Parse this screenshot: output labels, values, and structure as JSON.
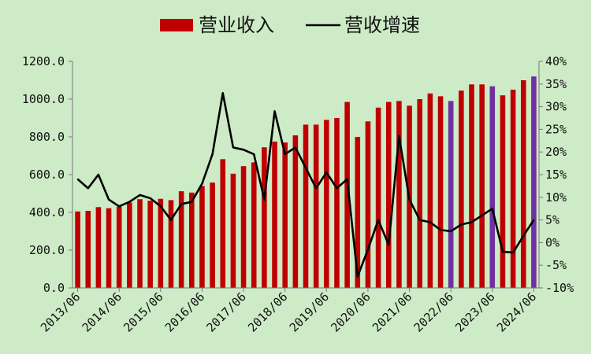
{
  "chart_data": {
    "type": "bar",
    "legend": {
      "position": "top",
      "bar_label": "营业收入",
      "line_label": "营收增速"
    },
    "colors": {
      "bar": "#c00000",
      "bar_highlight": "#7030a0",
      "line": "#000000",
      "background": "#cdebc6"
    },
    "grid": false,
    "y_left": {
      "ylim": [
        0,
        1200
      ],
      "ticks": [
        0,
        200,
        400,
        600,
        800,
        1000,
        1200
      ],
      "tick_labels": [
        "0.0",
        "200.0",
        "400.0",
        "600.0",
        "800.0",
        "1000.0",
        "1200.0"
      ]
    },
    "y_right": {
      "ylim": [
        -10,
        40
      ],
      "ticks": [
        -10,
        -5,
        0,
        5,
        10,
        15,
        20,
        25,
        30,
        35,
        40
      ],
      "tick_labels": [
        "-10%",
        "-5%",
        "0%",
        "5%",
        "10%",
        "15%",
        "20%",
        "25%",
        "30%",
        "35%",
        "40%"
      ]
    },
    "x_tick_labels": [
      "2013/06",
      "2014/06",
      "2015/06",
      "2016/06",
      "2017/06",
      "2018/06",
      "2019/06",
      "2020/06",
      "2021/06",
      "2022/06",
      "2023/06",
      "2024/06"
    ],
    "x_tick_indices": [
      0,
      4,
      8,
      12,
      16,
      20,
      24,
      28,
      32,
      36,
      40,
      44
    ],
    "series": [
      {
        "name": "营业收入",
        "type": "bar",
        "axis": "left",
        "values": [
          405,
          408,
          428,
          422,
          430,
          452,
          470,
          462,
          472,
          465,
          512,
          505,
          540,
          558,
          682,
          605,
          645,
          665,
          745,
          775,
          770,
          808,
          865,
          865,
          890,
          900,
          985,
          800,
          882,
          955,
          985,
          990,
          965,
          1000,
          1030,
          1015,
          990,
          1045,
          1078,
          1078,
          1068,
          1020,
          1050,
          1100,
          1120
        ],
        "highlight_indices": [
          36,
          40,
          44
        ]
      },
      {
        "name": "营收增速",
        "type": "line",
        "axis": "right",
        "values": [
          14,
          12,
          15,
          9.5,
          8,
          9,
          10.5,
          9.8,
          8,
          5,
          8.5,
          9,
          13,
          19.5,
          33,
          21,
          20.5,
          19.5,
          9.5,
          29,
          19.5,
          21,
          16.5,
          12,
          15.5,
          12,
          14,
          -7.5,
          -1.5,
          5,
          -0.5,
          23.5,
          9.5,
          5,
          4.5,
          2.8,
          2.5,
          4,
          4.5,
          6,
          7.5,
          -2,
          -2.2,
          1.5,
          5
        ]
      }
    ]
  }
}
